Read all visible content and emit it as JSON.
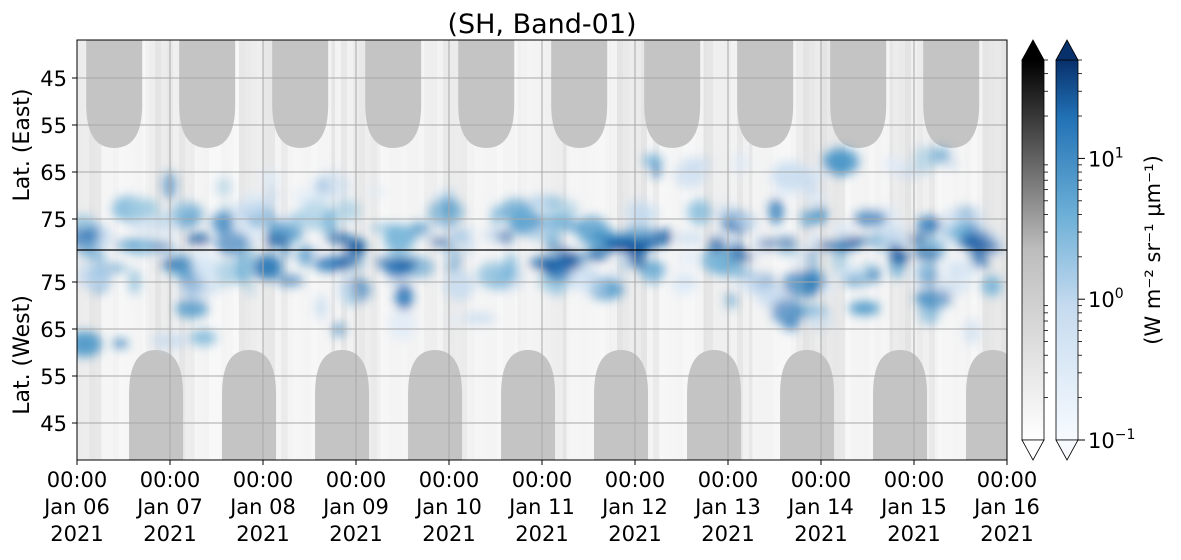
{
  "chart_data": {
    "type": "heatmap",
    "title": "(SH, Band-01)",
    "x_ticks": [
      {
        "time": "00:00",
        "date": "Jan 06",
        "year": "2021"
      },
      {
        "time": "00:00",
        "date": "Jan 07",
        "year": "2021"
      },
      {
        "time": "00:00",
        "date": "Jan 08",
        "year": "2021"
      },
      {
        "time": "00:00",
        "date": "Jan 09",
        "year": "2021"
      },
      {
        "time": "00:00",
        "date": "Jan 10",
        "year": "2021"
      },
      {
        "time": "00:00",
        "date": "Jan 11",
        "year": "2021"
      },
      {
        "time": "00:00",
        "date": "Jan 12",
        "year": "2021"
      },
      {
        "time": "00:00",
        "date": "Jan 13",
        "year": "2021"
      },
      {
        "time": "00:00",
        "date": "Jan 14",
        "year": "2021"
      },
      {
        "time": "00:00",
        "date": "Jan 15",
        "year": "2021"
      },
      {
        "time": "00:00",
        "date": "Jan 16",
        "year": "2021"
      }
    ],
    "x_range": [
      "2021-01-06 00:00",
      "2021-01-16 00:00"
    ],
    "y_ticks_top": [
      "45",
      "55",
      "65",
      "75"
    ],
    "y_ticks_bottom": [
      "75",
      "65",
      "55",
      "45"
    ],
    "ylabel_top": "Lat. (East)",
    "ylabel_bottom": "Lat. (West)",
    "grid": true,
    "colorbar": {
      "scale": "log",
      "range": [
        0.1,
        50
      ],
      "tick_labels": [
        {
          "base": "10",
          "exp": "1",
          "value": 10
        },
        {
          "base": "10",
          "exp": "0",
          "value": 1
        },
        {
          "base": "10",
          "exp": "−1",
          "value": 0.1
        }
      ],
      "label": "(W m⁻² sr⁻¹ μm⁻¹)",
      "bars": [
        "grey",
        "blue"
      ],
      "extend": "both"
    },
    "colors": {
      "blue_low": "#e8f1fa",
      "blue_mid": "#6aaed6",
      "blue_high": "#08306b",
      "grey_low": "#ffffff",
      "grey_high": "#000000",
      "night_fill": "#c4c4c4"
    }
  }
}
